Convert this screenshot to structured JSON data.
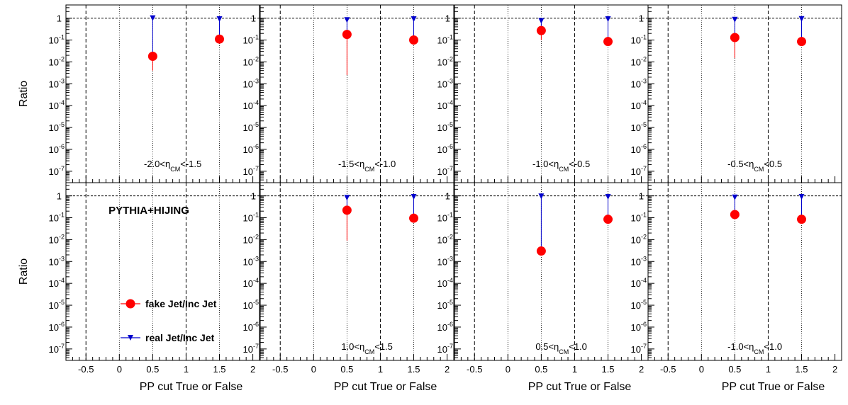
{
  "colors": {
    "fake": "#ff0000",
    "real": "#0000cc",
    "axis": "#000000"
  },
  "x_axis_label": "PP cut True or False",
  "y_axis_label": "Ratio",
  "overlay_text": "PYTHIA+HIJING",
  "legend": [
    {
      "label": "fake Jet/Inc Jet",
      "marker": "circle",
      "color": "#ff0000"
    },
    {
      "label": "real Jet/Inc Jet",
      "marker": "down-triangle",
      "color": "#0000cc"
    }
  ],
  "chart_data": {
    "type": "scatter",
    "layout": "2 rows x 4 columns",
    "y_scale": "log",
    "xlim": [
      -0.8,
      2.1
    ],
    "ylim": [
      3e-08,
      4
    ],
    "x_ticks": [
      "-0.5",
      "0",
      "0.5",
      "1",
      "1.5",
      "2"
    ],
    "x_tick_values": [
      -0.5,
      0,
      0.5,
      1,
      1.5,
      2
    ],
    "y_ticks": [
      {
        "value": 1,
        "base": "1",
        "exp": ""
      },
      {
        "value": 0.1,
        "base": "10",
        "exp": "-1"
      },
      {
        "value": 0.01,
        "base": "10",
        "exp": "-2"
      },
      {
        "value": 0.001,
        "base": "10",
        "exp": "-3"
      },
      {
        "value": 0.0001,
        "base": "10",
        "exp": "-4"
      },
      {
        "value": 1e-05,
        "base": "10",
        "exp": "-5"
      },
      {
        "value": 1e-06,
        "base": "10",
        "exp": "-6"
      },
      {
        "value": 1e-07,
        "base": "10",
        "exp": "-7"
      }
    ],
    "reference_lines": {
      "horizontal_y": 1,
      "vertical_x": [
        -0.5,
        1
      ],
      "dotted_x": [
        0,
        0.5,
        1.5
      ]
    },
    "panels": [
      {
        "label_pre": "-2.0<",
        "label_eta": "η",
        "label_sub": "CM",
        "label_post": "<-1.5",
        "fake": [
          {
            "x": 0.5,
            "y": 0.018,
            "err_lo": 0.004,
            "err_hi": 0.02
          },
          {
            "x": 1.5,
            "y": 0.11,
            "err_lo": 0.11,
            "err_hi": 0.11
          }
        ],
        "real": [
          {
            "x": 0.5,
            "y": 1.0,
            "err_lo": 0.018,
            "err_hi": 1.0
          },
          {
            "x": 1.5,
            "y": 0.9,
            "err_lo": 0.11,
            "err_hi": 0.9
          }
        ]
      },
      {
        "label_pre": "-1.5<",
        "label_eta": "η",
        "label_sub": "CM",
        "label_post": "<-1.0",
        "fake": [
          {
            "x": 0.5,
            "y": 0.18,
            "err_lo": 0.0025,
            "err_hi": 0.18
          },
          {
            "x": 1.5,
            "y": 0.1,
            "err_lo": 0.1,
            "err_hi": 0.1
          }
        ],
        "real": [
          {
            "x": 0.5,
            "y": 0.82,
            "err_lo": 0.18,
            "err_hi": 0.82
          },
          {
            "x": 1.5,
            "y": 0.9,
            "err_lo": 0.1,
            "err_hi": 0.9
          }
        ]
      },
      {
        "label_pre": "-1.0<",
        "label_eta": "η",
        "label_sub": "CM",
        "label_post": "<-0.5",
        "fake": [
          {
            "x": 0.5,
            "y": 0.27,
            "err_lo": 0.1,
            "err_hi": 0.27
          },
          {
            "x": 1.5,
            "y": 0.085,
            "err_lo": 0.085,
            "err_hi": 0.085
          }
        ],
        "real": [
          {
            "x": 0.5,
            "y": 0.75,
            "err_lo": 0.27,
            "err_hi": 0.75
          },
          {
            "x": 1.5,
            "y": 0.9,
            "err_lo": 0.085,
            "err_hi": 0.9
          }
        ]
      },
      {
        "label_pre": "-0.5<",
        "label_eta": "η",
        "label_sub": "CM",
        "label_post": "<0.5",
        "fake": [
          {
            "x": 0.5,
            "y": 0.13,
            "err_lo": 0.015,
            "err_hi": 0.13
          },
          {
            "x": 1.5,
            "y": 0.085,
            "err_lo": 0.085,
            "err_hi": 0.085
          }
        ],
        "real": [
          {
            "x": 0.5,
            "y": 0.85,
            "err_lo": 0.13,
            "err_hi": 0.85
          },
          {
            "x": 1.5,
            "y": 0.92,
            "err_lo": 0.085,
            "err_hi": 0.92
          }
        ]
      },
      {
        "label_pre": "",
        "label_eta": "",
        "label_sub": "",
        "label_post": "",
        "fake": [],
        "real": []
      },
      {
        "label_pre": "1.0<",
        "label_eta": "η",
        "label_sub": "CM",
        "label_post": "<1.5",
        "fake": [
          {
            "x": 0.5,
            "y": 0.22,
            "err_lo": 0.009,
            "err_hi": 0.22
          },
          {
            "x": 1.5,
            "y": 0.095,
            "err_lo": 0.095,
            "err_hi": 0.095
          }
        ],
        "real": [
          {
            "x": 0.5,
            "y": 0.82,
            "err_lo": 0.22,
            "err_hi": 0.82
          },
          {
            "x": 1.5,
            "y": 0.9,
            "err_lo": 0.095,
            "err_hi": 0.9
          }
        ]
      },
      {
        "label_pre": "0.5<",
        "label_eta": "η",
        "label_sub": "CM",
        "label_post": "<1.0",
        "fake": [
          {
            "x": 0.5,
            "y": 0.003,
            "err_lo": 0.003,
            "err_hi": 0.003
          },
          {
            "x": 1.5,
            "y": 0.085,
            "err_lo": 0.085,
            "err_hi": 0.085
          }
        ],
        "real": [
          {
            "x": 0.5,
            "y": 0.95,
            "err_lo": 0.003,
            "err_hi": 0.95
          },
          {
            "x": 1.5,
            "y": 0.9,
            "err_lo": 0.085,
            "err_hi": 0.9
          }
        ]
      },
      {
        "label_pre": "-1.0<",
        "label_eta": "η",
        "label_sub": "CM",
        "label_post": "<1.0",
        "fake": [
          {
            "x": 0.5,
            "y": 0.14,
            "err_lo": 0.14,
            "err_hi": 0.14
          },
          {
            "x": 1.5,
            "y": 0.085,
            "err_lo": 0.085,
            "err_hi": 0.085
          }
        ],
        "real": [
          {
            "x": 0.5,
            "y": 0.85,
            "err_lo": 0.14,
            "err_hi": 0.85
          },
          {
            "x": 1.5,
            "y": 0.9,
            "err_lo": 0.085,
            "err_hi": 0.9
          }
        ]
      }
    ]
  }
}
